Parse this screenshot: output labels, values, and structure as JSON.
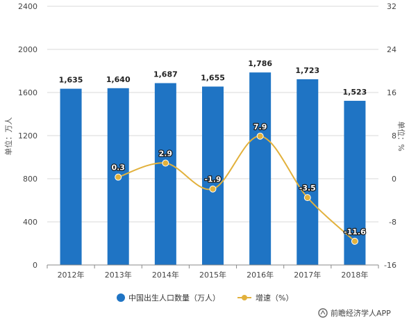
{
  "chart_data": {
    "type": "bar",
    "categories": [
      "2012年",
      "2013年",
      "2014年",
      "2015年",
      "2016年",
      "2017年",
      "2018年"
    ],
    "series": [
      {
        "name": "中国出生人口数量（万人）",
        "kind": "bar",
        "axis": "left",
        "values": [
          1635,
          1640,
          1687,
          1655,
          1786,
          1723,
          1523
        ],
        "labels": [
          "1,635",
          "1,640",
          "1,687",
          "1,655",
          "1,786",
          "1,723",
          "1,523"
        ],
        "color": "#1f74c4"
      },
      {
        "name": "增速（%）",
        "kind": "line",
        "axis": "right",
        "values": [
          null,
          0.3,
          2.9,
          -1.9,
          7.9,
          -3.5,
          -11.6
        ],
        "labels": [
          "",
          "0.3",
          "2.9",
          "-1.9",
          "7.9",
          "-3.5",
          "-11.6"
        ],
        "color": "#e2b13c"
      }
    ],
    "ylabel": "单位：万人",
    "y2label": "单位：%",
    "ylim": [
      0,
      2400
    ],
    "yticks": [
      0,
      400,
      800,
      1200,
      1600,
      2000,
      2400
    ],
    "y2lim": [
      -16,
      32
    ],
    "y2ticks": [
      -16,
      -8,
      0,
      8,
      16,
      24,
      32
    ],
    "grid": true,
    "legend_position": "bottom"
  },
  "source": "前瞻经济学人APP"
}
